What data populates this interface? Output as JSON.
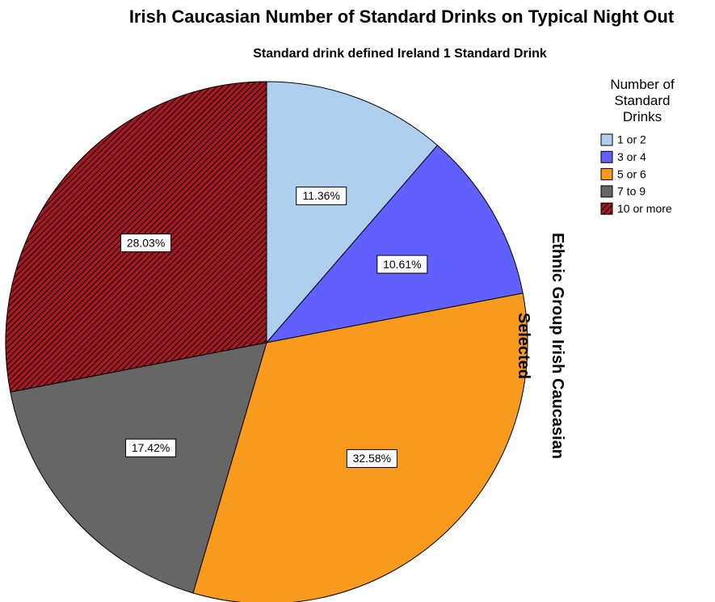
{
  "chart_data": {
    "type": "pie",
    "title": "Irish Caucasian Number of Standard Drinks on Typical Night Out",
    "subtitle": "Standard drink defined Ireland 1 Standard Drink",
    "legend_title": "Number of Standard Drinks",
    "side_label": "Ethnic Group Irish Caucasian Selected",
    "categories": [
      "1 or 2",
      "3 or 4",
      "5 or 6",
      "7 to 9",
      "10 or more"
    ],
    "values": [
      11.36,
      10.61,
      32.58,
      17.42,
      28.03
    ],
    "value_labels": [
      "11.36%",
      "10.61%",
      "32.58%",
      "17.42%",
      "28.03%"
    ],
    "colors": [
      "#aed0ee",
      "#6060ff",
      "#f79a1e",
      "#666666",
      "#a31a22"
    ],
    "hatch": [
      false,
      false,
      false,
      false,
      true
    ],
    "legend": "right"
  }
}
